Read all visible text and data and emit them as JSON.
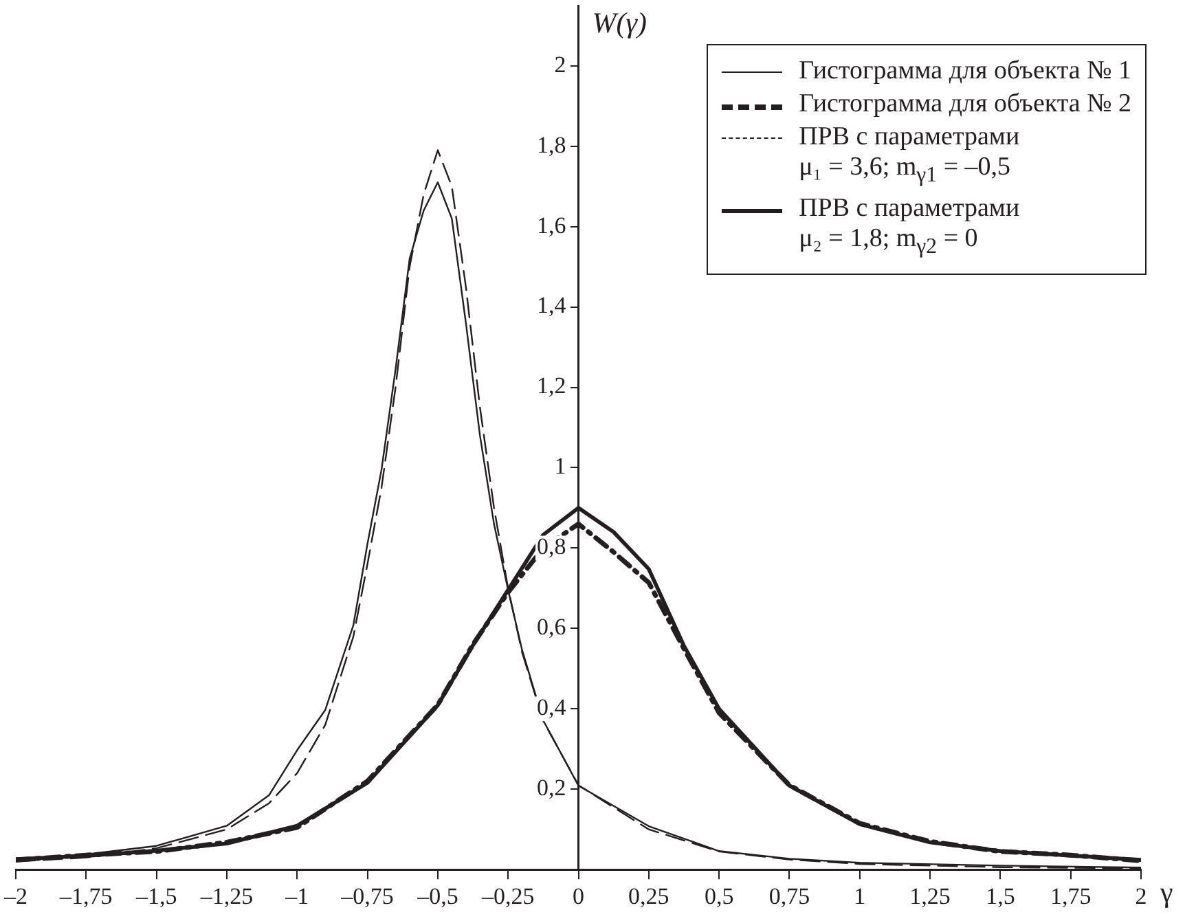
{
  "chart_data": {
    "type": "line",
    "xlabel": "γ",
    "ylabel": "W(γ)",
    "xlim": [
      -2,
      2
    ],
    "ylim": [
      0,
      2.15
    ],
    "xticks": [
      {
        "value": -2,
        "label": "–2"
      },
      {
        "value": -1.75,
        "label": "–1,75"
      },
      {
        "value": -1.5,
        "label": "–1,5"
      },
      {
        "value": -1.25,
        "label": "–1,25"
      },
      {
        "value": -1,
        "label": "–1"
      },
      {
        "value": -0.75,
        "label": "–0,75"
      },
      {
        "value": -0.5,
        "label": "–0,5"
      },
      {
        "value": -0.25,
        "label": "–0,25"
      },
      0,
      {
        "value": 0.25,
        "label": "0,25"
      },
      {
        "value": 0.5,
        "label": "0,5"
      },
      {
        "value": 0.75,
        "label": "0,75"
      },
      1,
      {
        "value": 1.25,
        "label": "1,25"
      },
      {
        "value": 1.5,
        "label": "1,5"
      },
      {
        "value": 1.75,
        "label": "1,75"
      },
      2
    ],
    "yticks": [
      {
        "value": 0.2,
        "label": "0,2"
      },
      {
        "value": 0.4,
        "label": "0,4"
      },
      {
        "value": 0.6,
        "label": "0,6"
      },
      {
        "value": 0.8,
        "label": "0,8"
      },
      1,
      {
        "value": 1.2,
        "label": "1,2"
      },
      {
        "value": 1.4,
        "label": "1,4"
      },
      {
        "value": 1.6,
        "label": "1,6"
      },
      {
        "value": 1.8,
        "label": "1,8"
      },
      2
    ],
    "grid": false,
    "legend": "top right",
    "marker": "none",
    "series": [
      {
        "name": "Гистограмма для объекта № 1",
        "color": "#231f20",
        "line_style": "solid",
        "x": [
          -2,
          -1.75,
          -1.5,
          -1.25,
          -1.1,
          -1,
          -0.9,
          -0.8,
          -0.75,
          -0.7,
          -0.65,
          -0.6,
          -0.55,
          -0.5,
          -0.45,
          -0.4,
          -0.35,
          -0.3,
          -0.25,
          -0.2,
          -0.125,
          0,
          0.25,
          0.5,
          0.75,
          1,
          1.5,
          2
        ],
        "values": [
          0.026,
          0.038,
          0.059,
          0.109,
          0.185,
          0.297,
          0.397,
          0.608,
          0.81,
          0.995,
          1.245,
          1.52,
          1.64,
          1.71,
          1.62,
          1.36,
          1.08,
          0.86,
          0.696,
          0.546,
          0.371,
          0.209,
          0.108,
          0.046,
          0.027,
          0.017,
          0.01,
          0.005
        ]
      },
      {
        "name": "Гистограмма для объекта № 2",
        "color": "#231f20",
        "line_style": "dashed",
        "x": [
          -2,
          -1.75,
          -1.5,
          -1.25,
          -1,
          -0.75,
          -0.5,
          -0.375,
          -0.25,
          -0.125,
          0,
          0.125,
          0.25,
          0.375,
          0.5,
          0.75,
          1,
          1.25,
          1.5,
          1.75,
          2
        ],
        "values": [
          0.024,
          0.036,
          0.045,
          0.068,
          0.105,
          0.22,
          0.41,
          0.56,
          0.69,
          0.8,
          0.86,
          0.79,
          0.714,
          0.55,
          0.39,
          0.21,
          0.115,
          0.07,
          0.045,
          0.036,
          0.022
        ]
      },
      {
        "name": "ПРВ с параметрами\nμ₁ = 3,6; m$_{γ1}$ = –0,5",
        "color": "#231f20",
        "line_style": "dashed",
        "x": [
          -2,
          -1.75,
          -1.5,
          -1.25,
          -1.1,
          -1,
          -0.9,
          -0.8,
          -0.75,
          -0.7,
          -0.65,
          -0.6,
          -0.55,
          -0.5,
          -0.45,
          -0.4,
          -0.35,
          -0.3,
          -0.25,
          -0.2,
          -0.125,
          0,
          0.25,
          0.5,
          0.75,
          1,
          1.5,
          2
        ],
        "values": [
          0.02,
          0.03,
          0.053,
          0.1,
          0.165,
          0.24,
          0.36,
          0.58,
          0.76,
          0.95,
          1.2,
          1.5,
          1.68,
          1.79,
          1.7,
          1.45,
          1.15,
          0.9,
          0.7,
          0.54,
          0.37,
          0.21,
          0.1,
          0.045,
          0.025,
          0.014,
          0.006,
          0.003
        ]
      },
      {
        "name": "ПРВ с параметрами\nμ₂ = 1,8; m$_{γ2}$ = 0",
        "color": "#231f20",
        "line_style": "solid",
        "x": [
          -2,
          -1.75,
          -1.5,
          -1.25,
          -1,
          -0.75,
          -0.5,
          -0.375,
          -0.25,
          -0.125,
          0,
          0.125,
          0.25,
          0.375,
          0.5,
          0.75,
          1,
          1.25,
          1.5,
          1.75,
          2
        ],
        "values": [
          0.026,
          0.034,
          0.047,
          0.065,
          0.109,
          0.216,
          0.409,
          0.558,
          0.696,
          0.833,
          0.9,
          0.84,
          0.748,
          0.557,
          0.4,
          0.209,
          0.113,
          0.068,
          0.046,
          0.035,
          0.024
        ]
      }
    ]
  }
}
